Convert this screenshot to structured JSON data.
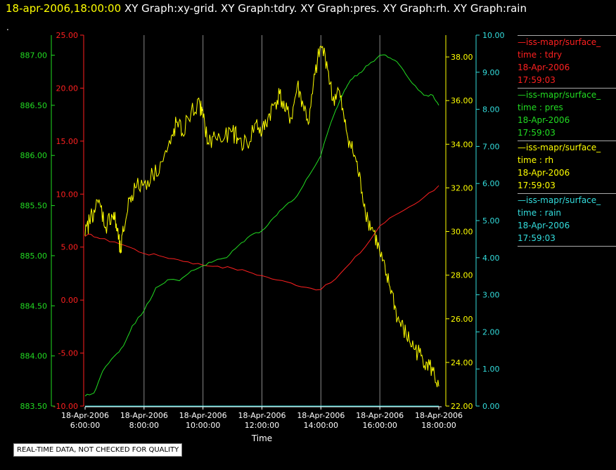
{
  "header": {
    "timestamp": "18-apr-2006,18:00:00",
    "graphs": [
      "XY Graph:xy-grid.",
      "XY Graph:tdry.",
      "XY Graph:pres.",
      "XY Graph:rh.",
      "XY Graph:rain"
    ]
  },
  "top_mark": ".",
  "disclaimer": "REAL-TIME DATA, NOT CHECKED FOR QUALITY",
  "colors": {
    "tdry": "#ff2020",
    "pres": "#22dd22",
    "rh": "#ffff00",
    "rain": "#33dddd",
    "grid": "#888888"
  },
  "legend": [
    {
      "source": "—iss-mapr/surface_",
      "field": "time : tdry",
      "date": "18-Apr-2006",
      "time": "17:59:03",
      "color": "#ff2020"
    },
    {
      "source": "—iss-mapr/surface_",
      "field": "time : pres",
      "date": "18-Apr-2006",
      "time": "17:59:03",
      "color": "#22dd22"
    },
    {
      "source": "—iss-mapr/surface_",
      "field": "time : rh",
      "date": "18-Apr-2006",
      "time": "17:59:03",
      "color": "#ffff00"
    },
    {
      "source": "—iss-mapr/surface_",
      "field": "time : rain",
      "date": "18-Apr-2006",
      "time": "17:59:03",
      "color": "#33dddd"
    }
  ],
  "chart_data": {
    "type": "line",
    "xlabel": "Time",
    "x_range": [
      "18-Apr-2006 06:00:00",
      "18-Apr-2006 18:00:00"
    ],
    "x_hour_range": [
      6,
      18
    ],
    "x_ticks": [
      {
        "hour": 6,
        "date": "18-Apr-2006",
        "time": "6:00:00"
      },
      {
        "hour": 8,
        "date": "18-Apr-2006",
        "time": "8:00:00"
      },
      {
        "hour": 10,
        "date": "18-Apr-2006",
        "time": "10:00:00"
      },
      {
        "hour": 12,
        "date": "18-Apr-2006",
        "time": "12:00:00"
      },
      {
        "hour": 14,
        "date": "18-Apr-2006",
        "time": "14:00:00"
      },
      {
        "hour": 16,
        "date": "18-Apr-2006",
        "time": "16:00:00"
      },
      {
        "hour": 18,
        "date": "18-Apr-2006",
        "time": "18:00:00"
      }
    ],
    "grid": true,
    "legend_position": "right",
    "axes": {
      "pres": {
        "range": [
          883.5,
          887.2
        ],
        "ticks": [
          "883.50",
          "884.00",
          "884.50",
          "885.00",
          "885.50",
          "886.00",
          "886.50",
          "887.00"
        ]
      },
      "tdry": {
        "range": [
          -10,
          25
        ],
        "ticks": [
          "-10.00",
          "-5.00",
          "0.00",
          "5.00",
          "10.00",
          "15.00",
          "20.00",
          "25.00"
        ]
      },
      "rh": {
        "range": [
          22,
          39
        ],
        "ticks": [
          "22.00",
          "24.00",
          "26.00",
          "28.00",
          "30.00",
          "32.00",
          "34.00",
          "36.00",
          "38.00"
        ]
      },
      "rain": {
        "range": [
          0,
          10
        ],
        "ticks": [
          "0.00",
          "1.00",
          "2.00",
          "3.00",
          "4.00",
          "5.00",
          "6.00",
          "7.00",
          "8.00",
          "9.00",
          "10.00"
        ]
      }
    },
    "series": [
      {
        "name": "tdry",
        "axis": "tdry",
        "x": [
          6,
          6.2,
          6.5,
          7,
          7.5,
          8,
          8.5,
          9,
          9.5,
          10,
          10.5,
          11,
          11.5,
          12,
          12.5,
          13,
          13.5,
          14,
          14.5,
          15,
          15.5,
          16,
          16.5,
          17,
          17.5,
          18
        ],
        "y": [
          6.0,
          6.2,
          5.8,
          5.5,
          5.0,
          4.4,
          4.2,
          3.9,
          3.6,
          3.3,
          3.2,
          3.0,
          2.7,
          2.3,
          1.9,
          1.6,
          1.2,
          1.0,
          2.0,
          3.5,
          5.0,
          7.0,
          8.0,
          8.8,
          9.7,
          10.8
        ]
      },
      {
        "name": "pres",
        "axis": "pres",
        "x": [
          6,
          6.3,
          6.6,
          7,
          7.3,
          7.6,
          8,
          8.4,
          8.8,
          9.2,
          9.6,
          10,
          10.4,
          10.8,
          11.2,
          11.6,
          12,
          12.4,
          12.8,
          13.2,
          13.6,
          14,
          14.2,
          14.5,
          14.8,
          15,
          15.3,
          15.6,
          16,
          16.2,
          16.5,
          16.8,
          17.1,
          17.5,
          17.8,
          18
        ],
        "y": [
          883.6,
          883.63,
          883.85,
          884.0,
          884.1,
          884.3,
          884.45,
          884.68,
          884.76,
          884.75,
          884.85,
          884.9,
          884.95,
          884.98,
          885.1,
          885.2,
          885.25,
          885.38,
          885.5,
          885.6,
          885.8,
          886.0,
          886.2,
          886.45,
          886.65,
          886.75,
          886.82,
          886.9,
          887.0,
          887.0,
          886.95,
          886.85,
          886.72,
          886.6,
          886.6,
          886.5
        ]
      },
      {
        "name": "rh",
        "axis": "rh",
        "x": [
          6,
          6.15,
          6.3,
          6.5,
          6.7,
          6.9,
          7,
          7.1,
          7.2,
          7.3,
          7.5,
          7.7,
          8,
          8.3,
          8.6,
          8.9,
          9.1,
          9.3,
          9.6,
          9.9,
          10,
          10.2,
          10.4,
          10.7,
          11,
          11.2,
          11.5,
          11.8,
          12,
          12.2,
          12.4,
          12.6,
          12.8,
          13,
          13.2,
          13.4,
          13.6,
          13.8,
          14,
          14.2,
          14.4,
          14.6,
          14.8,
          15,
          15.2,
          15.4,
          15.6,
          15.8,
          16,
          16.2,
          16.4,
          16.6,
          16.8,
          17,
          17.2,
          17.4,
          17.6,
          17.8,
          18
        ],
        "y": [
          29.8,
          30.5,
          31.0,
          31.3,
          30.2,
          30.8,
          30.6,
          30.0,
          29.0,
          30.0,
          31.5,
          32.0,
          32.2,
          32.6,
          33.2,
          34.0,
          35.0,
          34.5,
          35.5,
          35.8,
          35.2,
          34.0,
          34.4,
          34.2,
          34.6,
          34.2,
          34.0,
          35.0,
          34.5,
          35.2,
          35.8,
          36.3,
          35.5,
          35.2,
          36.7,
          35.8,
          35.0,
          37.2,
          38.5,
          37.8,
          36.0,
          36.5,
          35.0,
          34.0,
          33.2,
          31.8,
          30.5,
          30.0,
          29.0,
          28.0,
          27.3,
          26.0,
          25.5,
          25.0,
          24.6,
          24.3,
          24.0,
          23.6,
          22.9
        ]
      },
      {
        "name": "rain",
        "axis": "rain",
        "x": [
          6,
          18
        ],
        "y": [
          0,
          0
        ]
      }
    ]
  }
}
